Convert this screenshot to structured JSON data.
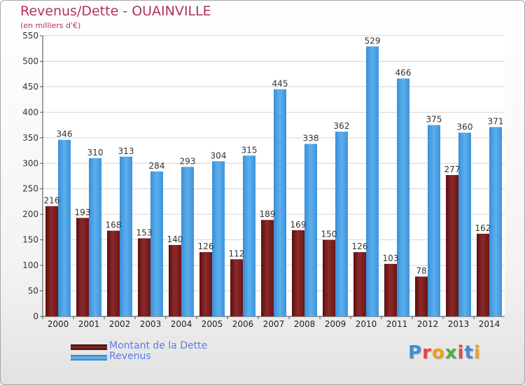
{
  "header": {
    "title": "Revenus/Dette - OUAINVILLE",
    "subtitle": "(en milliers d'€)"
  },
  "legend": [
    {
      "label": "Montant de la Dette",
      "color": "#7a1e1e"
    },
    {
      "label": "Revenus",
      "color": "#4da3e5"
    }
  ],
  "logo": {
    "text": "Proxiti",
    "letter_colors": [
      "#3a8fd8",
      "#e8453c",
      "#f0a020",
      "#4cae3e",
      "#e8453c",
      "#3a8fd8",
      "#f0a020"
    ]
  },
  "chart_data": {
    "type": "bar",
    "title": "Revenus/Dette - OUAINVILLE",
    "ylabel": "(en milliers d'€)",
    "ylim": [
      0,
      550
    ],
    "yticks": [
      0,
      50,
      100,
      150,
      200,
      250,
      300,
      350,
      400,
      450,
      500,
      550
    ],
    "grid": true,
    "legend_position": "bottom-left",
    "categories": [
      "2000",
      "2001",
      "2002",
      "2003",
      "2004",
      "2005",
      "2006",
      "2007",
      "2008",
      "2009",
      "2010",
      "2011",
      "2012",
      "2013",
      "2014"
    ],
    "series": [
      {
        "name": "Montant de la Dette",
        "color": "#7a1e1e",
        "values": [
          216,
          193,
          168,
          153,
          140,
          126,
          112,
          189,
          169,
          150,
          126,
          103,
          78,
          277,
          162
        ]
      },
      {
        "name": "Revenus",
        "color": "#4da3e5",
        "values": [
          346,
          310,
          313,
          284,
          293,
          304,
          315,
          445,
          338,
          362,
          529,
          466,
          375,
          360,
          371
        ]
      }
    ]
  }
}
